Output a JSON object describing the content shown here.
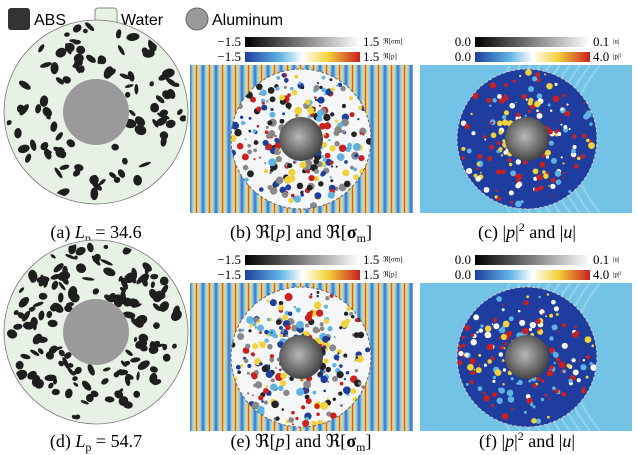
{
  "legend": [
    "ABS",
    "Water",
    "Aluminum"
  ],
  "captions": [
    [
      "(a) ",
      "L",
      "p",
      " = 34.6"
    ],
    [
      "(b) ℜ[",
      "p",
      "] and ℜ[",
      "σ",
      "m",
      "]"
    ],
    [
      "(c) |",
      "p",
      "|",
      "2",
      " and |",
      "u",
      "|"
    ],
    [
      "(d) ",
      "L",
      "p",
      " = 54.7"
    ],
    [
      "(e) ℜ[",
      "p",
      "] and ℜ[",
      "σ",
      "m",
      "]"
    ],
    [
      "(f) |",
      "p",
      "|",
      "2",
      " and |",
      "u",
      "|"
    ]
  ],
  "colorbars": [
    {
      "min": "−1.5",
      "max": "1.5",
      "label": "ℜ[σm]"
    },
    {
      "min": "−1.5",
      "max": "1.5",
      "label": "ℜ[p]"
    },
    {
      "min": "0.0",
      "max": "0.1",
      "label": "|u|"
    },
    {
      "min": "0.0",
      "max": "4.0",
      "label": "|p|²"
    },
    {
      "min": "−1.5",
      "max": "1.5",
      "label": "ℜ[σm]"
    },
    {
      "min": "−1.5",
      "max": "1.5",
      "label": "ℜ[p]"
    },
    {
      "min": "0.0",
      "max": "0.1",
      "label": "|u|"
    },
    {
      "min": "0.0",
      "max": "4.0",
      "label": "|p|²"
    }
  ]
}
